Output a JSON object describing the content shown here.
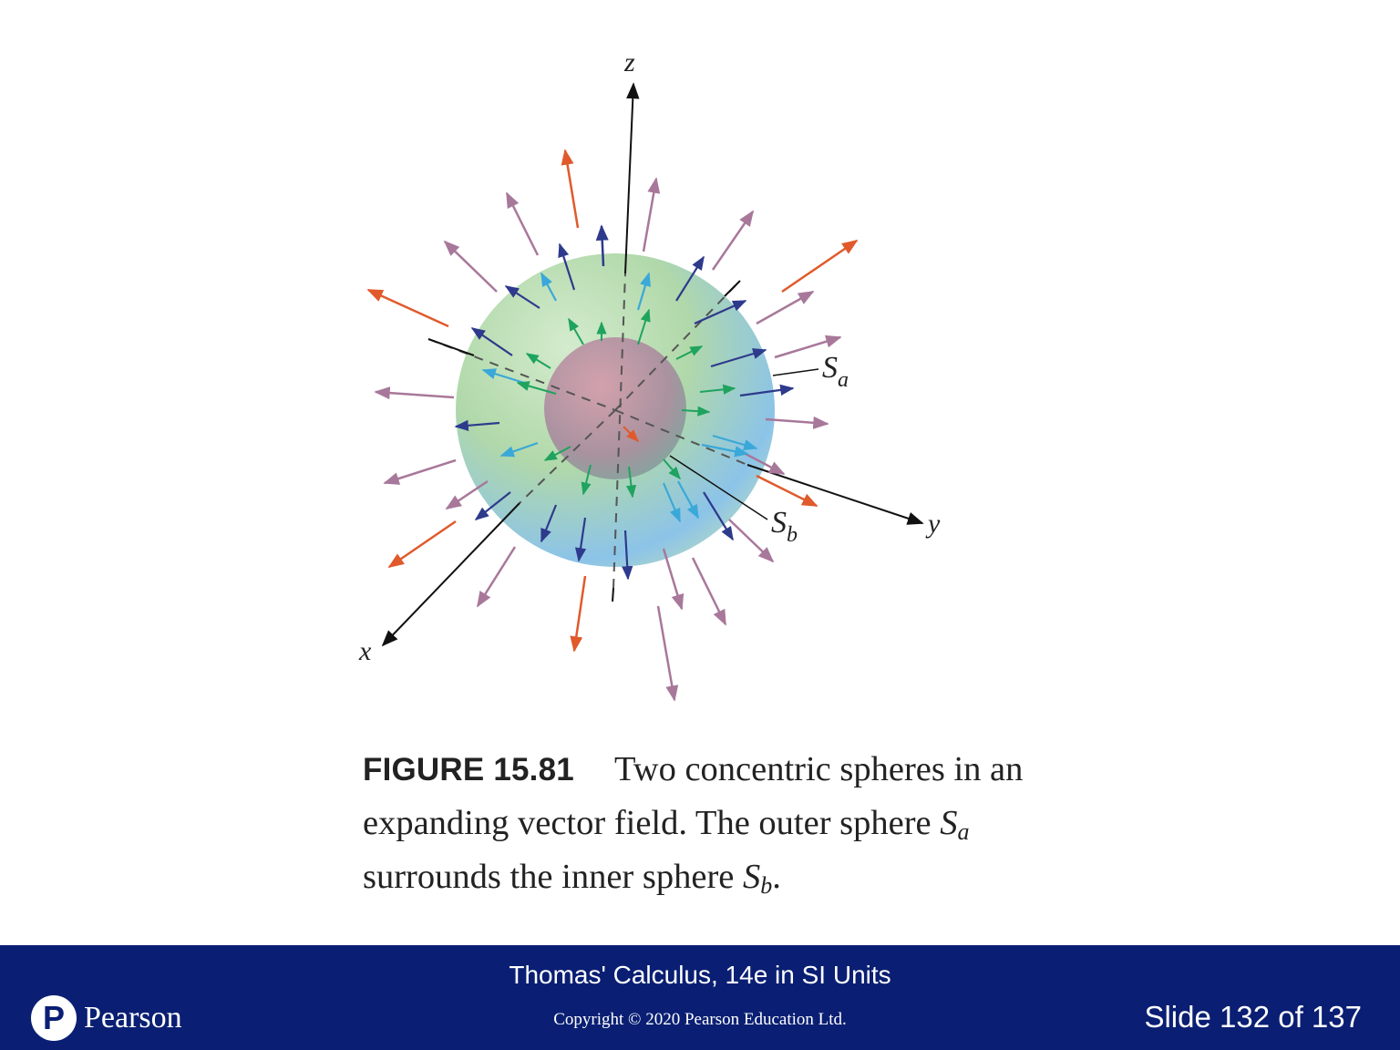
{
  "figure": {
    "axes": {
      "x": "x",
      "y": "y",
      "z": "z"
    },
    "outer_sphere_label": {
      "base": "S",
      "sub": "a"
    },
    "inner_sphere_label": {
      "base": "S",
      "sub": "b"
    },
    "colors": {
      "outer_sphere_green": "#a8d4a0",
      "outer_sphere_blue": "#7fbde6",
      "inner_sphere": "#c58a9e",
      "arrow_orange": "#e05a2b",
      "arrow_mauve": "#a8789a",
      "arrow_navy": "#2e3a8c",
      "arrow_cyan": "#3aa8d8",
      "arrow_green": "#1fa35e"
    }
  },
  "caption": {
    "figure_label": "FIGURE 15.81",
    "line1": "Two concentric spheres in an expanding vector field. The outer sphere",
    "s": "S",
    "sub_a": "a",
    "middle": "surrounds the inner sphere",
    "sub_b": "b",
    "end": "."
  },
  "footer": {
    "book_title": "Thomas' Calculus, 14e in SI Units",
    "copyright": "Copyright © 2020 Pearson Education Ltd.",
    "logo_mark": "P",
    "logo_text": "Pearson",
    "slide_counter": "Slide 132 of 137",
    "background_color": "#0a1f73"
  }
}
